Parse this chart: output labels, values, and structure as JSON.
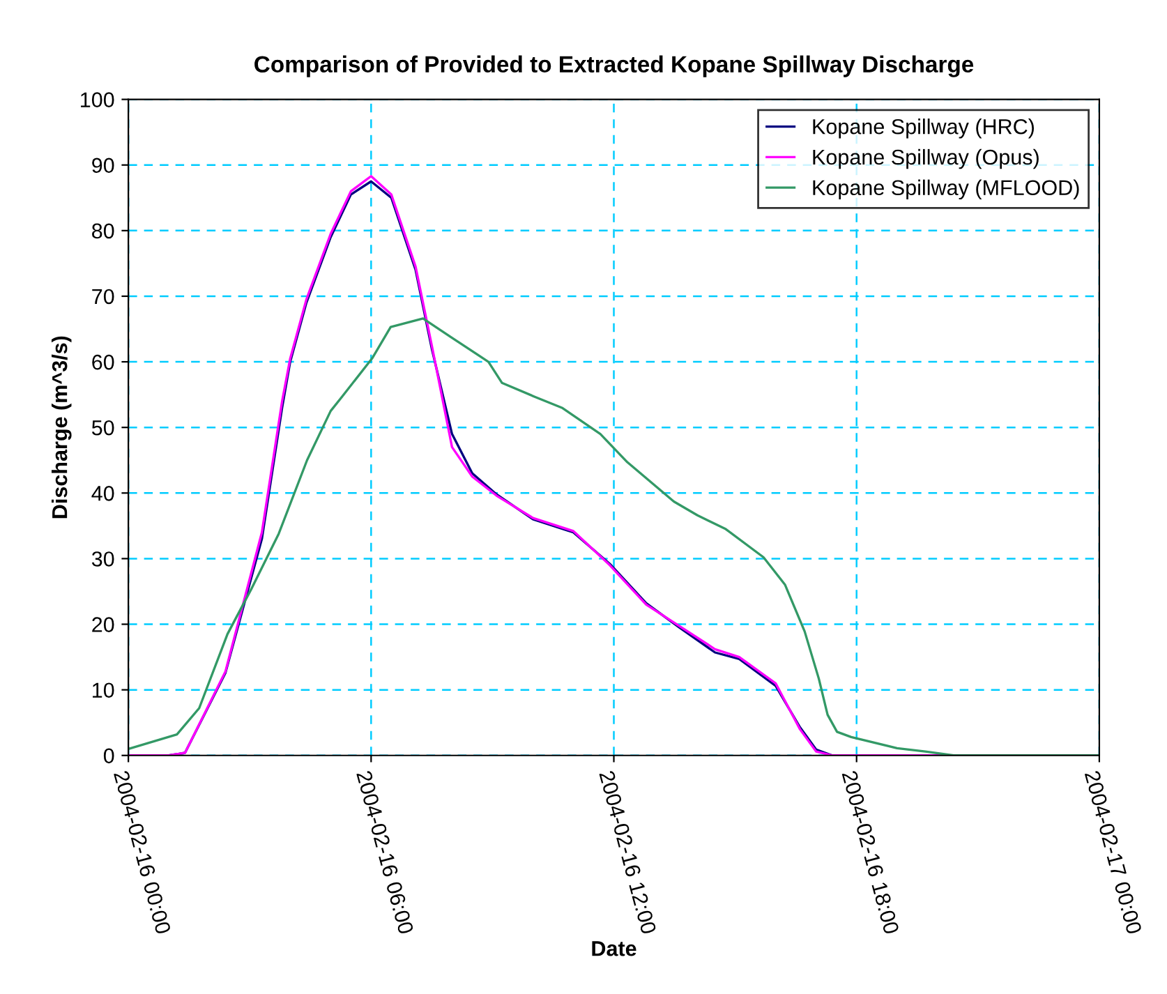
{
  "chart_data": {
    "type": "line",
    "title": "Comparison of Provided to Extracted Kopane Spillway Discharge",
    "xlabel": "Date",
    "ylabel": "Discharge (m^3/s)",
    "xlim": [
      "2004-02-16T00:00",
      "2004-02-17T00:00"
    ],
    "xticks": [
      {
        "value": "2004-02-16T00:00",
        "label": "2004-02-16 00:00"
      },
      {
        "value": "2004-02-16T06:00",
        "label": "2004-02-16 06:00"
      },
      {
        "value": "2004-02-16T12:00",
        "label": "2004-02-16 12:00"
      },
      {
        "value": "2004-02-16T18:00",
        "label": "2004-02-16 18:00"
      },
      {
        "value": "2004-02-17T00:00",
        "label": "2004-02-17 00:00"
      }
    ],
    "ylim": [
      0,
      100
    ],
    "yticks": [
      0,
      10,
      20,
      30,
      40,
      50,
      60,
      70,
      80,
      90,
      100
    ],
    "grid": true,
    "legend": "top right",
    "line_style": "solid",
    "marker": "none",
    "series": [
      {
        "name": "Kopane Spillway (HRC)",
        "color": "#000080",
        "x": [
          "2004-02-16T00:00",
          "2004-02-16T01:00",
          "2004-02-16T01:24",
          "2004-02-16T02:24",
          "2004-02-16T03:18",
          "2004-02-16T03:48",
          "2004-02-16T04:00",
          "2004-02-16T04:24",
          "2004-02-16T05:00",
          "2004-02-16T05:30",
          "2004-02-16T06:00",
          "2004-02-16T06:30",
          "2004-02-16T07:06",
          "2004-02-16T07:30",
          "2004-02-16T08:00",
          "2004-02-16T08:30",
          "2004-02-16T09:06",
          "2004-02-16T10:00",
          "2004-02-16T11:00",
          "2004-02-16T11:54",
          "2004-02-16T12:48",
          "2004-02-16T13:36",
          "2004-02-16T14:30",
          "2004-02-16T15:06",
          "2004-02-16T16:00",
          "2004-02-16T16:36",
          "2004-02-16T17:00",
          "2004-02-16T17:24",
          "2004-02-17T00:00"
        ],
        "values": [
          0,
          0,
          0.4,
          12.6,
          33,
          53,
          60,
          69,
          79,
          85.5,
          87.5,
          85,
          74,
          62,
          49,
          43,
          39.8,
          36,
          34,
          29.2,
          23.2,
          19.6,
          15.7,
          14.7,
          10.6,
          4.3,
          0.9,
          0,
          0
        ]
      },
      {
        "name": "Kopane Spillway (Opus)",
        "color": "#ff00ff",
        "x": [
          "2004-02-16T00:00",
          "2004-02-16T01:00",
          "2004-02-16T01:24",
          "2004-02-16T02:24",
          "2004-02-16T03:18",
          "2004-02-16T03:48",
          "2004-02-16T04:00",
          "2004-02-16T04:24",
          "2004-02-16T05:00",
          "2004-02-16T05:30",
          "2004-02-16T06:00",
          "2004-02-16T06:30",
          "2004-02-16T07:06",
          "2004-02-16T07:30",
          "2004-02-16T08:00",
          "2004-02-16T08:30",
          "2004-02-16T09:06",
          "2004-02-16T10:00",
          "2004-02-16T11:00",
          "2004-02-16T11:54",
          "2004-02-16T12:48",
          "2004-02-16T13:36",
          "2004-02-16T14:30",
          "2004-02-16T15:06",
          "2004-02-16T16:00",
          "2004-02-16T16:36",
          "2004-02-16T17:00",
          "2004-02-16T17:24",
          "2004-02-17T00:00"
        ],
        "values": [
          0,
          0,
          0.4,
          12.8,
          34,
          54,
          60.5,
          69.5,
          79.5,
          86,
          88.3,
          85.5,
          74.5,
          62.5,
          47,
          42.5,
          39.6,
          36.2,
          34.2,
          29,
          23,
          19.8,
          16.2,
          15,
          11,
          4,
          0.6,
          0,
          0
        ]
      },
      {
        "name": "Kopane Spillway (MFLOOD)",
        "color": "#339966",
        "x": [
          "2004-02-16T00:00",
          "2004-02-16T01:12",
          "2004-02-16T01:45",
          "2004-02-16T02:27",
          "2004-02-16T03:02",
          "2004-02-16T03:43",
          "2004-02-16T04:25",
          "2004-02-16T05:00",
          "2004-02-16T05:17",
          "2004-02-16T06:02",
          "2004-02-16T06:29",
          "2004-02-16T07:17",
          "2004-02-16T07:58",
          "2004-02-16T08:54",
          "2004-02-16T09:14",
          "2004-02-16T10:02",
          "2004-02-16T10:43",
          "2004-02-16T11:40",
          "2004-02-16T12:20",
          "2004-02-16T13:29",
          "2004-02-16T14:04",
          "2004-02-16T14:46",
          "2004-02-16T15:42",
          "2004-02-16T16:14",
          "2004-02-16T16:43",
          "2004-02-16T17:04",
          "2004-02-16T17:17",
          "2004-02-16T17:31",
          "2004-02-16T17:52",
          "2004-02-16T19:00",
          "2004-02-16T19:42",
          "2004-02-16T20:24",
          "2004-02-17T00:00"
        ],
        "values": [
          1,
          3.2,
          7.2,
          18.5,
          25.3,
          33.8,
          45,
          52.5,
          54.7,
          60.6,
          65.3,
          66.6,
          63.8,
          60,
          56.8,
          54.7,
          53,
          49,
          44.7,
          38.7,
          36.6,
          34.5,
          30.2,
          26,
          18.9,
          11.7,
          6.2,
          3.6,
          2.8,
          1.1,
          0.6,
          0,
          0
        ]
      }
    ]
  }
}
